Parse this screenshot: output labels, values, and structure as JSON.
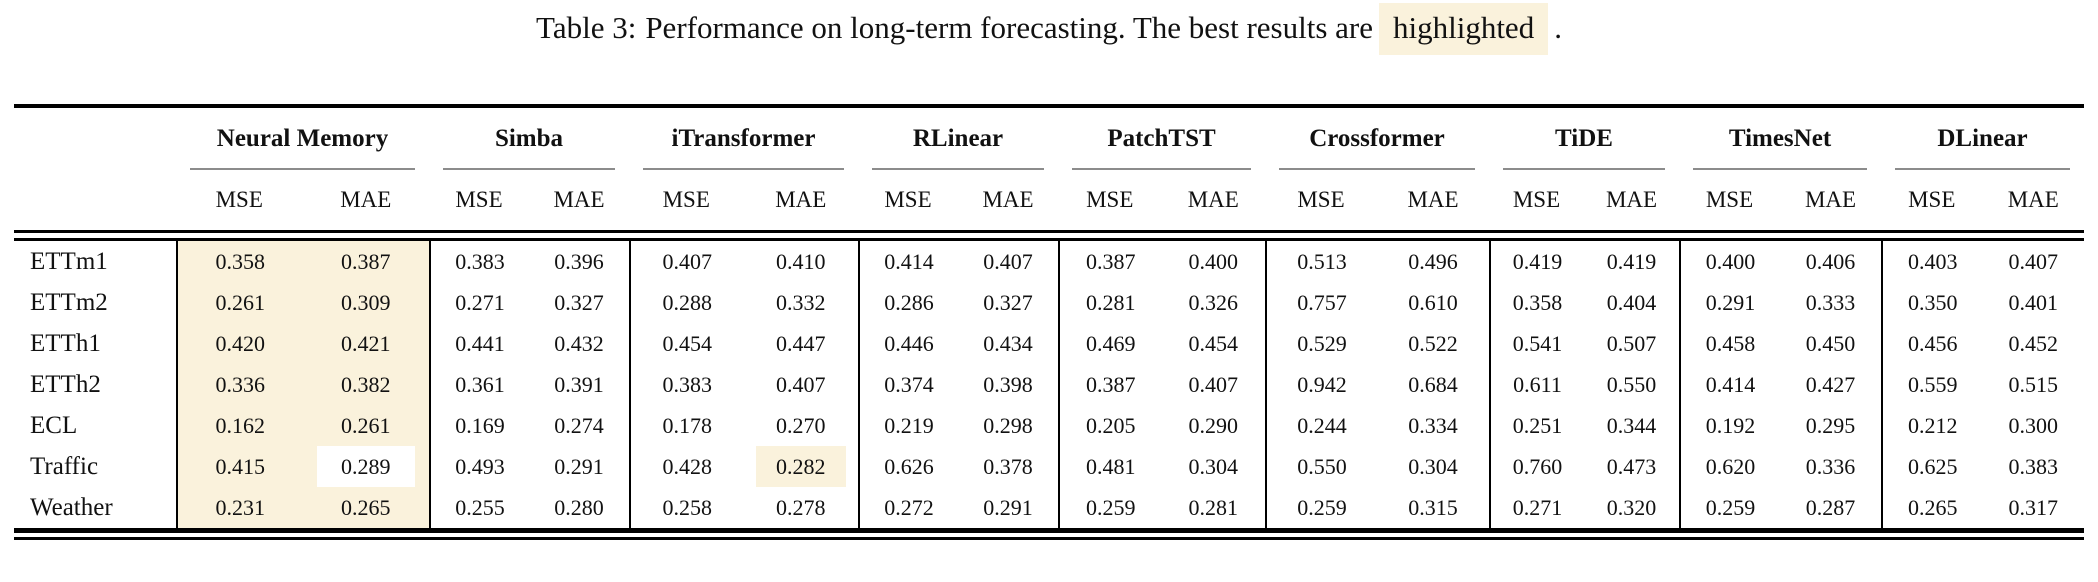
{
  "caption": {
    "label": "Table 3:",
    "text": "Performance on long-term forecasting. The best results are",
    "highlighted_word": "highlighted",
    "suffix": "."
  },
  "colors": {
    "highlight": "#faf2dc",
    "rule": "#000000",
    "cmidrule": "#8c8c8c",
    "text": "#111111"
  },
  "table": {
    "groups": [
      "Neural Memory",
      "Simba",
      "iTransformer",
      "RLinear",
      "PatchTST",
      "Crossformer",
      "TiDE",
      "TimesNet",
      "DLinear"
    ],
    "metric_labels": [
      "MSE",
      "MAE"
    ],
    "rows": [
      {
        "label": "ETTm1",
        "cells": [
          "0.358",
          "0.387",
          "0.383",
          "0.396",
          "0.407",
          "0.410",
          "0.414",
          "0.407",
          "0.387",
          "0.400",
          "0.513",
          "0.496",
          "0.419",
          "0.419",
          "0.400",
          "0.406",
          "0.403",
          "0.407"
        ]
      },
      {
        "label": "ETTm2",
        "cells": [
          "0.261",
          "0.309",
          "0.271",
          "0.327",
          "0.288",
          "0.332",
          "0.286",
          "0.327",
          "0.281",
          "0.326",
          "0.757",
          "0.610",
          "0.358",
          "0.404",
          "0.291",
          "0.333",
          "0.350",
          "0.401"
        ]
      },
      {
        "label": "ETTh1",
        "cells": [
          "0.420",
          "0.421",
          "0.441",
          "0.432",
          "0.454",
          "0.447",
          "0.446",
          "0.434",
          "0.469",
          "0.454",
          "0.529",
          "0.522",
          "0.541",
          "0.507",
          "0.458",
          "0.450",
          "0.456",
          "0.452"
        ]
      },
      {
        "label": "ETTh2",
        "cells": [
          "0.336",
          "0.382",
          "0.361",
          "0.391",
          "0.383",
          "0.407",
          "0.374",
          "0.398",
          "0.387",
          "0.407",
          "0.942",
          "0.684",
          "0.611",
          "0.550",
          "0.414",
          "0.427",
          "0.559",
          "0.515"
        ]
      },
      {
        "label": "ECL",
        "cells": [
          "0.162",
          "0.261",
          "0.169",
          "0.274",
          "0.178",
          "0.270",
          "0.219",
          "0.298",
          "0.205",
          "0.290",
          "0.244",
          "0.334",
          "0.251",
          "0.344",
          "0.192",
          "0.295",
          "0.212",
          "0.300"
        ]
      },
      {
        "label": "Traffic",
        "cells": [
          "0.415",
          "0.289",
          "0.493",
          "0.291",
          "0.428",
          "0.282",
          "0.626",
          "0.378",
          "0.481",
          "0.304",
          "0.550",
          "0.304",
          "0.760",
          "0.473",
          "0.620",
          "0.336",
          "0.625",
          "0.383"
        ]
      },
      {
        "label": "Weather",
        "cells": [
          "0.231",
          "0.265",
          "0.255",
          "0.280",
          "0.258",
          "0.278",
          "0.272",
          "0.291",
          "0.259",
          "0.281",
          "0.259",
          "0.315",
          "0.271",
          "0.320",
          "0.259",
          "0.287",
          "0.265",
          "0.317"
        ]
      }
    ],
    "highlight_cells": [
      [
        0,
        0
      ],
      [
        0,
        1
      ],
      [
        1,
        0
      ],
      [
        1,
        1
      ],
      [
        2,
        0
      ],
      [
        2,
        1
      ],
      [
        3,
        0
      ],
      [
        3,
        1
      ],
      [
        4,
        0
      ],
      [
        4,
        1
      ],
      [
        5,
        0
      ],
      [
        5,
        1
      ],
      [
        6,
        0
      ],
      [
        6,
        1
      ]
    ],
    "inner_white_box": [
      [
        5,
        1
      ]
    ],
    "inner_highlight_box": [
      [
        5,
        5
      ]
    ]
  }
}
